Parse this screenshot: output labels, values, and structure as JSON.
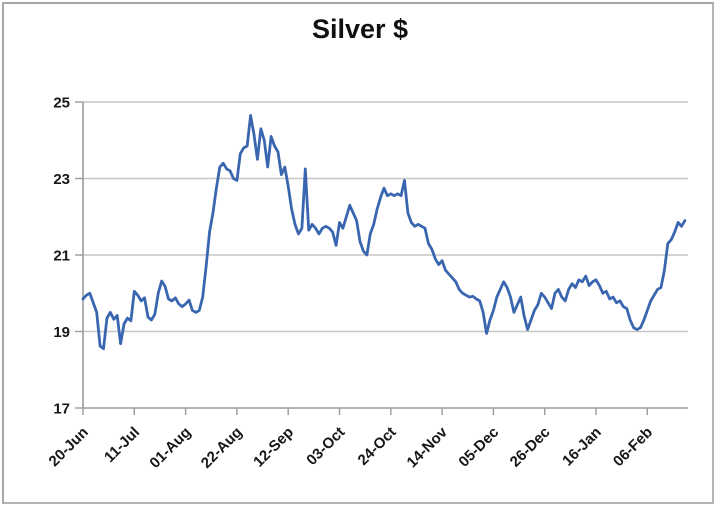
{
  "chart": {
    "title": "Silver $"
  },
  "colors": {
    "line": "#3a66b0",
    "gridline": "#c6c6c6",
    "axis": "#9b9b9b",
    "tick_text": "#171717",
    "title_text": "#111111",
    "frame_border": "#a6a6a6"
  },
  "chart_data": {
    "type": "line",
    "title": "Silver $",
    "xlabel": "",
    "ylabel": "",
    "grid": true,
    "legend": "none",
    "ylim": [
      17,
      25
    ],
    "y_ticks": [
      17,
      19,
      21,
      23,
      25
    ],
    "x_tick_labels": [
      "20-Jun",
      "11-Jul",
      "01-Aug",
      "22-Aug",
      "12-Sep",
      "03-Oct",
      "24-Oct",
      "14-Nov",
      "05-Dec",
      "26-Dec",
      "16-Jan",
      "06-Feb"
    ],
    "points_per_x_tick": 15,
    "series_name": "Silver $",
    "values": [
      19.85,
      19.95,
      20.0,
      19.75,
      19.5,
      18.62,
      18.55,
      19.35,
      19.5,
      19.32,
      19.42,
      18.68,
      19.2,
      19.35,
      19.28,
      20.05,
      19.95,
      19.8,
      19.88,
      19.38,
      19.3,
      19.45,
      20.0,
      20.32,
      20.18,
      19.85,
      19.8,
      19.88,
      19.72,
      19.65,
      19.72,
      19.82,
      19.55,
      19.5,
      19.55,
      19.9,
      20.7,
      21.6,
      22.1,
      22.75,
      23.3,
      23.4,
      23.25,
      23.2,
      23.0,
      22.95,
      23.65,
      23.8,
      23.85,
      24.65,
      24.15,
      23.5,
      24.3,
      24.0,
      23.3,
      24.1,
      23.85,
      23.7,
      23.1,
      23.3,
      22.8,
      22.2,
      21.8,
      21.55,
      21.7,
      23.25,
      21.65,
      21.8,
      21.7,
      21.55,
      21.7,
      21.75,
      21.7,
      21.6,
      21.25,
      21.85,
      21.7,
      22.0,
      22.3,
      22.1,
      21.9,
      21.35,
      21.1,
      21.0,
      21.55,
      21.8,
      22.2,
      22.5,
      22.75,
      22.55,
      22.6,
      22.55,
      22.6,
      22.55,
      22.95,
      22.1,
      21.85,
      21.75,
      21.8,
      21.75,
      21.7,
      21.3,
      21.15,
      20.9,
      20.75,
      20.85,
      20.6,
      20.5,
      20.4,
      20.3,
      20.1,
      20.0,
      19.95,
      19.9,
      19.92,
      19.85,
      19.8,
      19.5,
      18.95,
      19.3,
      19.55,
      19.9,
      20.1,
      20.3,
      20.15,
      19.9,
      19.5,
      19.7,
      19.9,
      19.4,
      19.05,
      19.3,
      19.55,
      19.7,
      20.0,
      19.9,
      19.75,
      19.6,
      20.0,
      20.1,
      19.9,
      19.8,
      20.1,
      20.25,
      20.15,
      20.35,
      20.3,
      20.45,
      20.2,
      20.3,
      20.35,
      20.2,
      20.0,
      20.05,
      19.85,
      19.9,
      19.75,
      19.8,
      19.65,
      19.6,
      19.3,
      19.1,
      19.05,
      19.1,
      19.3,
      19.55,
      19.8,
      19.95,
      20.1,
      20.15,
      20.6,
      21.3,
      21.4,
      21.6,
      21.85,
      21.75,
      21.9
    ]
  }
}
